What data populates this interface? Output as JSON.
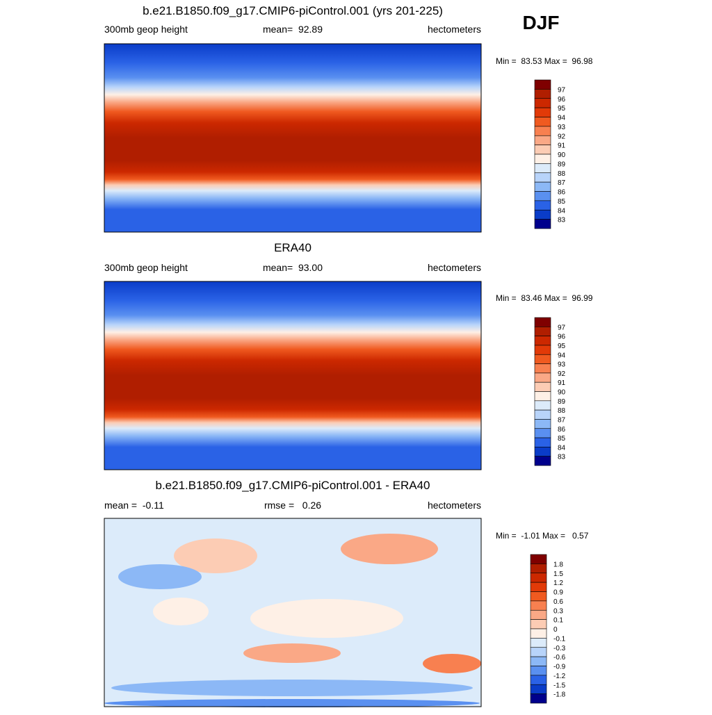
{
  "season": "DJF",
  "colorbar_colors": [
    "#7f0000",
    "#b01e00",
    "#cc2800",
    "#e23a08",
    "#f05a20",
    "#f88050",
    "#faa886",
    "#fcccb4",
    "#fef0e6",
    "#dcebfa",
    "#b8d4fa",
    "#8cb8f6",
    "#5a90f0",
    "#2a62e6",
    "#0a3cc8",
    "#00008c"
  ],
  "panels": [
    {
      "title": "b.e21.B1850.f09_g17.CMIP6-piControl.001 (yrs 201-225)",
      "left": "300mb geop height",
      "center": "mean=  92.89",
      "right": "hectometers",
      "minmax": "Min =  83.53 Max =  96.98",
      "colorbar_labels": [
        "97",
        "96",
        "95",
        "94",
        "93",
        "92",
        "91",
        "90",
        "89",
        "88",
        "87",
        "86",
        "85",
        "84",
        "83"
      ]
    },
    {
      "title": "ERA40",
      "left": "300mb geop height",
      "center": "mean=  93.00",
      "right": "hectometers",
      "minmax": "Min =  83.46 Max =  96.99",
      "colorbar_labels": [
        "97",
        "96",
        "95",
        "94",
        "93",
        "92",
        "91",
        "90",
        "89",
        "88",
        "87",
        "86",
        "85",
        "84",
        "83"
      ]
    },
    {
      "title": "b.e21.B1850.f09_g17.CMIP6-piControl.001 - ERA40",
      "left": "mean =  -0.11",
      "center": "rmse =   0.26",
      "right": "hectometers",
      "minmax": "Min =  -1.01 Max =   0.57",
      "colorbar_labels": [
        "1.8",
        "1.5",
        "1.2",
        "0.9",
        "0.6",
        "0.3",
        "0.1",
        "0",
        "-0.1",
        "-0.3",
        "-0.6",
        "-0.9",
        "-1.2",
        "-1.5",
        "-1.8"
      ]
    }
  ]
}
